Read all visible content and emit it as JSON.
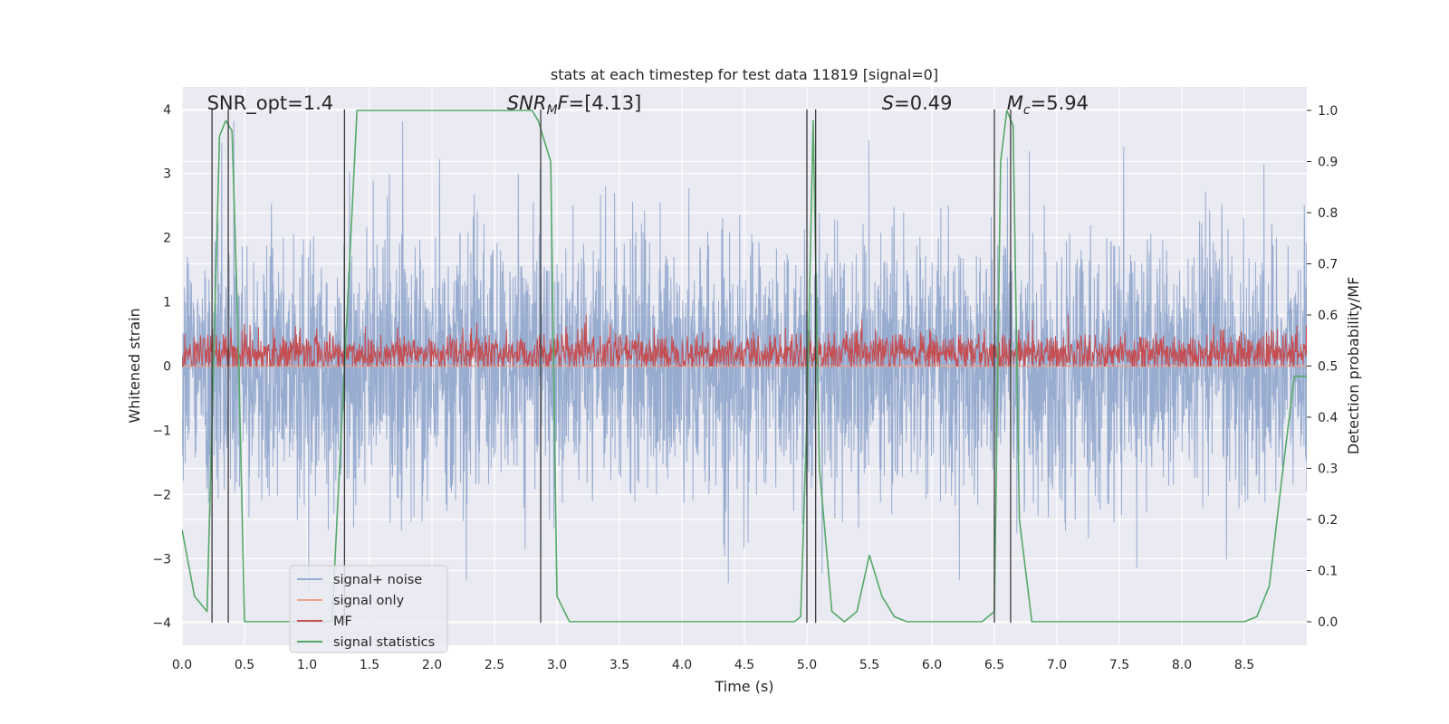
{
  "chart_data": {
    "type": "line",
    "title": "stats at each timestep for test data 11819 [signal=0]",
    "xlabel": "Time (s)",
    "ylabel": "Whitened strain",
    "y2label": "Detection probability/MF",
    "xlim": [
      0,
      9
    ],
    "ylim": [
      -4.35,
      4.35
    ],
    "y2lim": [
      -0.046,
      1.046
    ],
    "grid": true,
    "legend_position": "lower-left",
    "x_ticks": [
      0.0,
      0.5,
      1.0,
      1.5,
      2.0,
      2.5,
      3.0,
      3.5,
      4.0,
      4.5,
      5.0,
      5.5,
      6.0,
      6.5,
      7.0,
      7.5,
      8.0,
      8.5
    ],
    "x_tick_labels": [
      "0.0",
      "0.5",
      "1.0",
      "1.5",
      "2.0",
      "2.5",
      "3.0",
      "3.5",
      "4.0",
      "4.5",
      "5.0",
      "5.5",
      "6.0",
      "6.5",
      "7.0",
      "7.5",
      "8.0",
      "8.5"
    ],
    "y_ticks": [
      -4,
      -3,
      -2,
      -1,
      0,
      1,
      2,
      3,
      4
    ],
    "y_tick_labels": [
      "−4",
      "−3",
      "−2",
      "−1",
      "0",
      "1",
      "2",
      "3",
      "4"
    ],
    "y2_ticks": [
      0.0,
      0.1,
      0.2,
      0.3,
      0.4,
      0.5,
      0.6,
      0.7,
      0.8,
      0.9,
      1.0
    ],
    "y2_tick_labels": [
      "0.0",
      "0.1",
      "0.2",
      "0.3",
      "0.4",
      "0.5",
      "0.6",
      "0.7",
      "0.8",
      "0.9",
      "1.0"
    ],
    "annotations": [
      {
        "segments": [
          {
            "text": "SNR_opt=1.4"
          }
        ],
        "x": 0.2
      },
      {
        "segments": [
          {
            "text": "SNR",
            "italic": true
          },
          {
            "text": "M",
            "italic": true,
            "sub": true
          },
          {
            "text": "F",
            "italic": true
          },
          {
            "text": "=[4.13]"
          }
        ],
        "x": 2.6
      },
      {
        "segments": [
          {
            "text": "S",
            "italic": true
          },
          {
            "text": "=0.49"
          }
        ],
        "x": 5.6
      },
      {
        "segments": [
          {
            "text": "M",
            "italic": true
          },
          {
            "text": "c",
            "italic": true,
            "sub": true
          },
          {
            "text": "=5.94"
          }
        ],
        "x": 6.6
      }
    ],
    "vertical_lines_x": [
      0.24,
      0.37,
      1.3,
      2.87,
      5.0,
      5.07,
      6.5,
      6.63
    ],
    "series": [
      {
        "name": "signal+ noise",
        "axis": "left",
        "color": "#8fa5cc",
        "alpha": 0.9,
        "kind": "noise",
        "x_range": [
          0,
          9
        ],
        "samples": 3600,
        "std": 1.0,
        "clip": [
          -4.0,
          4.0
        ]
      },
      {
        "name": "signal only",
        "axis": "left",
        "color": "#e8a58d",
        "alpha": 1,
        "kind": "flat",
        "x": [
          0,
          9
        ],
        "y": [
          0,
          0
        ]
      },
      {
        "name": "MF",
        "axis": "right",
        "color": "#c44e52",
        "alpha": 1,
        "kind": "noise",
        "x_range": [
          0,
          9
        ],
        "samples": 2400,
        "mean": 0.525,
        "std": 0.02,
        "clip": [
          0.5,
          0.6
        ]
      },
      {
        "name": "signal statistics",
        "axis": "right",
        "color": "#55a868",
        "alpha": 1,
        "kind": "line",
        "x": [
          0.0,
          0.1,
          0.2,
          0.3,
          0.35,
          0.4,
          0.45,
          0.5,
          0.6,
          1.2,
          1.3,
          1.4,
          1.5,
          2.8,
          2.85,
          2.95,
          3.0,
          3.1,
          4.9,
          4.95,
          5.0,
          5.05,
          5.1,
          5.2,
          5.3,
          5.4,
          5.5,
          5.6,
          5.7,
          5.8,
          6.0,
          6.4,
          6.5,
          6.55,
          6.6,
          6.65,
          6.7,
          6.8,
          7.0,
          8.0,
          8.5,
          8.6,
          8.7,
          8.8,
          8.9,
          9.0
        ],
        "y": [
          0.18,
          0.05,
          0.02,
          0.95,
          0.98,
          0.96,
          0.55,
          0.0,
          0.0,
          0.0,
          0.5,
          1.0,
          1.0,
          1.0,
          0.98,
          0.9,
          0.05,
          0.0,
          0.0,
          0.01,
          0.4,
          0.98,
          0.3,
          0.02,
          0.0,
          0.02,
          0.13,
          0.05,
          0.01,
          0.0,
          0.0,
          0.0,
          0.02,
          0.9,
          1.0,
          0.97,
          0.2,
          0.0,
          0.0,
          0.0,
          0.0,
          0.01,
          0.07,
          0.28,
          0.48,
          0.48
        ]
      }
    ]
  }
}
